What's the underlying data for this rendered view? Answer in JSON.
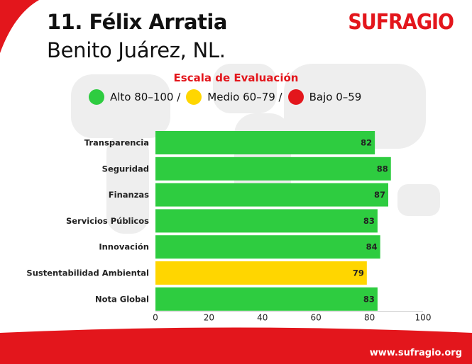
{
  "header": {
    "title": "11. Félix Arratia",
    "subtitle": "Benito Juárez, NL.",
    "brand": "SUFRAGIO"
  },
  "legend": {
    "title": "Escala de Evaluación",
    "items": [
      {
        "label": "Alto 80–100 /",
        "color": "#2ecc40"
      },
      {
        "label": "Medio 60–79 /",
        "color": "#ffd600"
      },
      {
        "label": "Bajo 0–59",
        "color": "#e3161c"
      }
    ]
  },
  "chart_data": {
    "type": "bar",
    "orientation": "horizontal",
    "categories": [
      "Transparencia",
      "Seguridad",
      "Finanzas",
      "Servicios Públicos",
      "Innovación",
      "Sustentabilidad Ambiental",
      "Nota Global"
    ],
    "values": [
      82,
      88,
      87,
      83,
      84,
      79,
      83
    ],
    "value_labels": [
      "82",
      "88",
      "87",
      "83",
      "84",
      "79",
      "83"
    ],
    "bar_colors": [
      "#2ecc40",
      "#2ecc40",
      "#2ecc40",
      "#2ecc40",
      "#2ecc40",
      "#ffd600",
      "#2ecc40"
    ],
    "xlim": [
      0,
      100
    ],
    "xticks": [
      "0",
      "20",
      "40",
      "60",
      "80",
      "100"
    ],
    "grid": false
  },
  "footer": {
    "url": "www.sufragio.org"
  },
  "colors": {
    "brand_red": "#e3161c",
    "high_green": "#2ecc40",
    "mid_yellow": "#ffd600"
  }
}
